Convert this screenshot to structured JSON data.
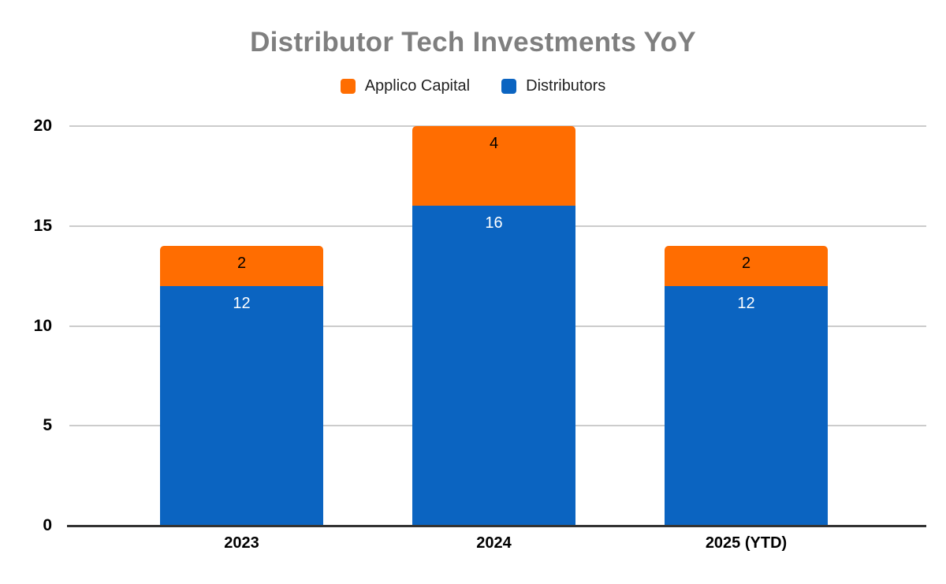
{
  "chart_data": {
    "type": "bar",
    "stacked": true,
    "title": "Distributor Tech Investments YoY",
    "categories": [
      "2023",
      "2024",
      "2025 (YTD)"
    ],
    "series": [
      {
        "name": "Distributors",
        "color": "#0B64C1",
        "label_color": "#FFFFFF",
        "values": [
          12,
          16,
          12
        ]
      },
      {
        "name": "Applico Capital",
        "color": "#FF6D01",
        "label_color": "#000000",
        "values": [
          2,
          4,
          2
        ]
      }
    ],
    "totals": [
      14,
      20,
      14
    ],
    "legend": {
      "position": "top",
      "order": [
        "Applico Capital",
        "Distributors"
      ]
    },
    "ylim": [
      0,
      20
    ],
    "yticks": [
      0,
      5,
      10,
      15,
      20
    ],
    "grid": true
  },
  "colors": {
    "background": "#FFFFFF",
    "title": "#7F7F7F",
    "gridline": "#CCCCCC",
    "baseline": "#333333"
  }
}
